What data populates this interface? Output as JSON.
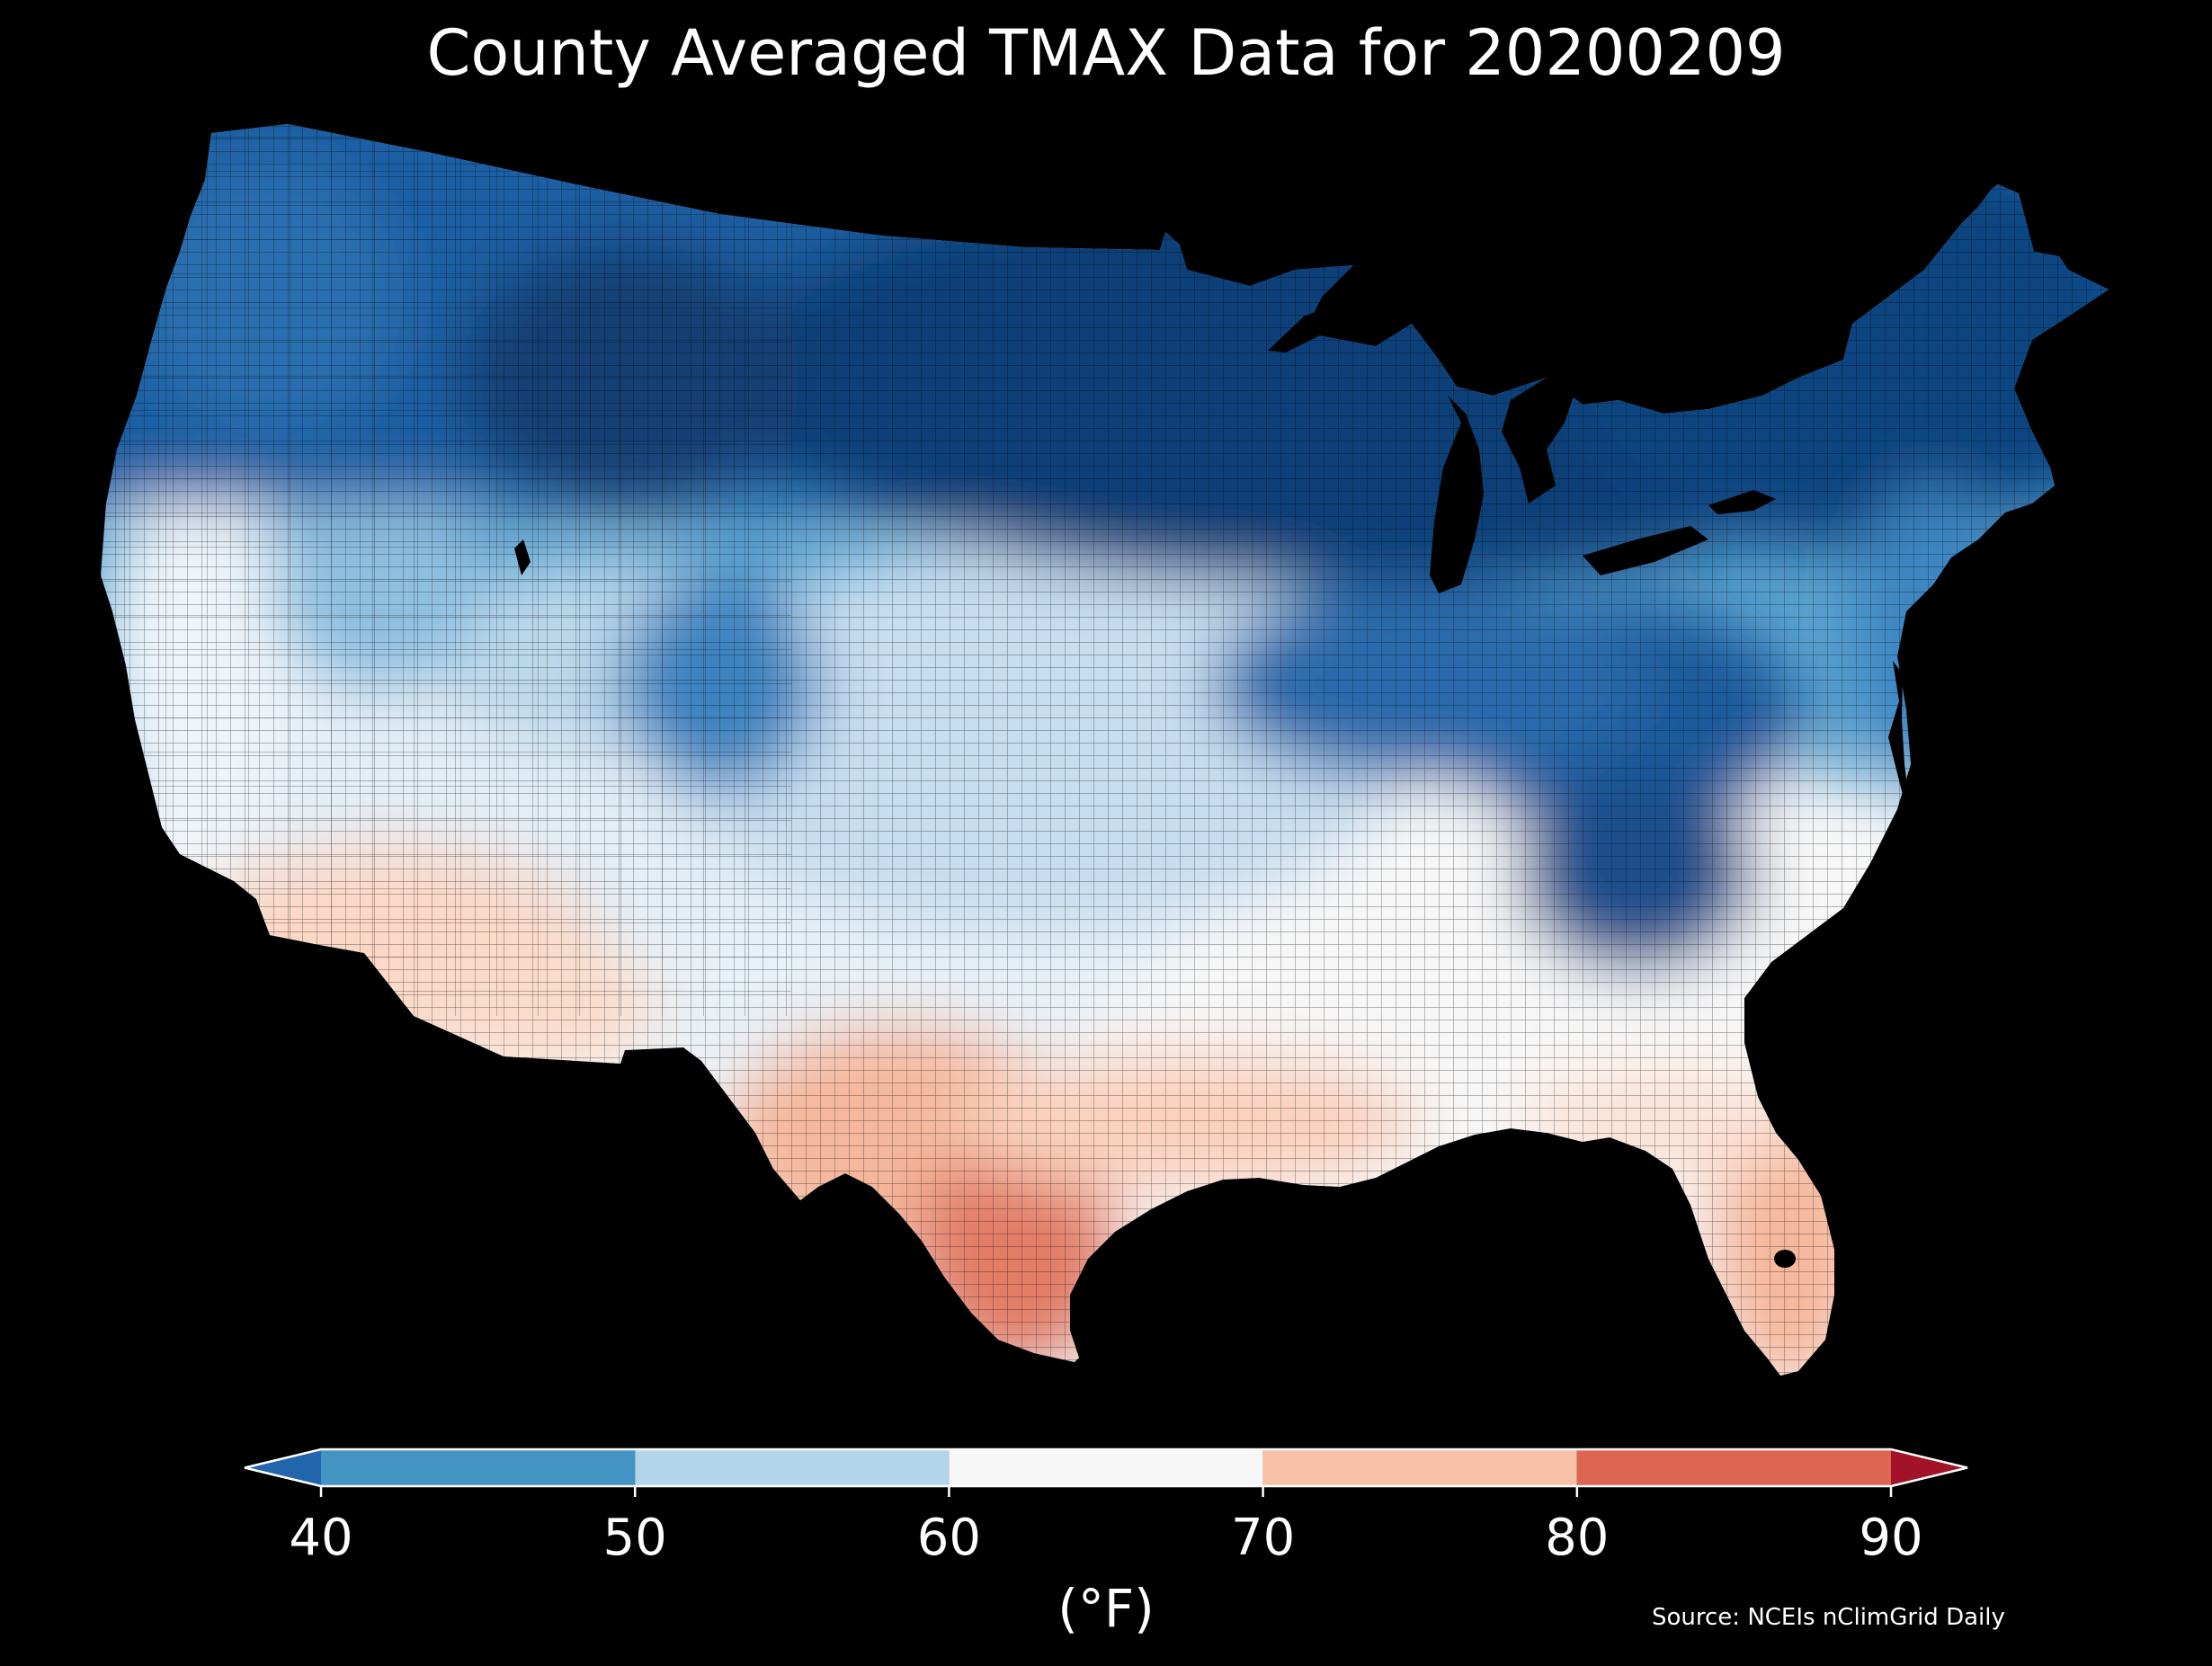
{
  "title": "County Averaged TMAX Data for 20200209",
  "map": {
    "region": "contiguous-us-counties",
    "background": "#000000",
    "land_coloring": "county-averaged-tmax",
    "pattern": [
      {
        "area": "northern-plains-great-lakes-northeast",
        "level": "<40"
      },
      {
        "area": "appalachians",
        "level": "<40"
      },
      {
        "area": "rockies-idaho-montana-wyoming",
        "level": "<40"
      },
      {
        "area": "pacific-northwest-great-basin",
        "level": "40-50"
      },
      {
        "area": "central-plains-midwest",
        "level": "50-60"
      },
      {
        "area": "california-coast-southwest-gulf-coast",
        "level": "60-70"
      },
      {
        "area": "southern-arizona-southern-california",
        "level": "70-80"
      },
      {
        "area": "south-texas-florida",
        "level": "70-80"
      },
      {
        "area": "south-texas-rio-grande",
        "level": "80-90"
      }
    ]
  },
  "colorbar": {
    "ticks": [
      "40",
      "50",
      "60",
      "70",
      "80",
      "90"
    ],
    "bounds": [
      40,
      50,
      60,
      70,
      80,
      90
    ],
    "colors": [
      "#4393c3",
      "#b2d5e9",
      "#f7f7f7",
      "#f8c1a5",
      "#dd6652"
    ],
    "under_color": "#2166ac",
    "over_color": "#a2132a",
    "extend": "both",
    "unit": "(°F)"
  },
  "source": "Source: NCEIs nClimGrid Daily"
}
